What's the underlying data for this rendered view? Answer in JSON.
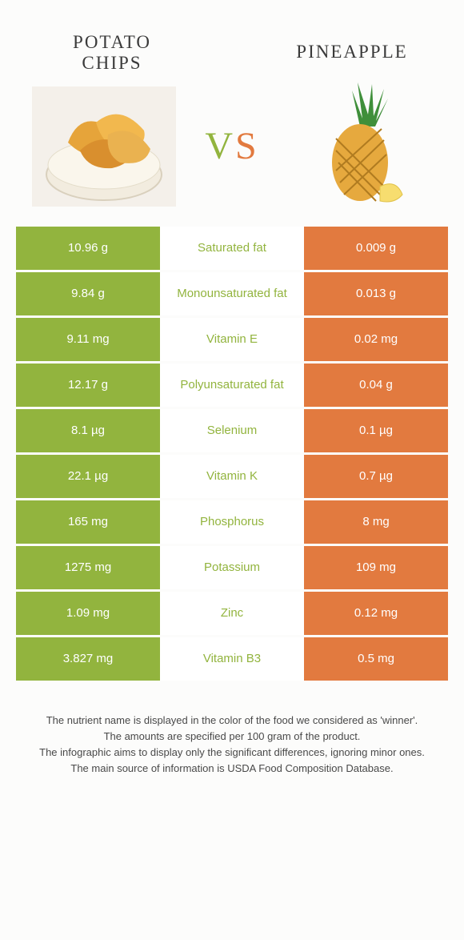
{
  "colors": {
    "left_food": "#92b43e",
    "right_food": "#e27a3f",
    "label_bg": "#ffffff",
    "vs_v": "#92b43e",
    "vs_s": "#e27a3f"
  },
  "left_food": {
    "name_line1": "POTATO",
    "name_line2": "CHIPS"
  },
  "right_food": {
    "name": "PINEAPPLE"
  },
  "vs": "VS",
  "table": {
    "rows": [
      {
        "left": "10.96 g",
        "label": "Saturated fat",
        "right": "0.009 g",
        "label_color": "left"
      },
      {
        "left": "9.84 g",
        "label": "Monounsaturated fat",
        "right": "0.013 g",
        "label_color": "left"
      },
      {
        "left": "9.11 mg",
        "label": "Vitamin E",
        "right": "0.02 mg",
        "label_color": "left"
      },
      {
        "left": "12.17 g",
        "label": "Polyunsaturated fat",
        "right": "0.04 g",
        "label_color": "left"
      },
      {
        "left": "8.1 µg",
        "label": "Selenium",
        "right": "0.1 µg",
        "label_color": "left"
      },
      {
        "left": "22.1 µg",
        "label": "Vitamin K",
        "right": "0.7 µg",
        "label_color": "left"
      },
      {
        "left": "165 mg",
        "label": "Phosphorus",
        "right": "8 mg",
        "label_color": "left"
      },
      {
        "left": "1275 mg",
        "label": "Potassium",
        "right": "109 mg",
        "label_color": "left"
      },
      {
        "left": "1.09 mg",
        "label": "Zinc",
        "right": "0.12 mg",
        "label_color": "left"
      },
      {
        "left": "3.827 mg",
        "label": "Vitamin B3",
        "right": "0.5 mg",
        "label_color": "left"
      }
    ]
  },
  "footer": {
    "line1": "The nutrient name is displayed in the color of the food we considered as 'winner'.",
    "line2": "The amounts are specified per 100 gram of the product.",
    "line3": "The infographic aims to display only the significant differences, ignoring minor ones.",
    "line4": "The main source of information is USDA Food Composition Database."
  }
}
